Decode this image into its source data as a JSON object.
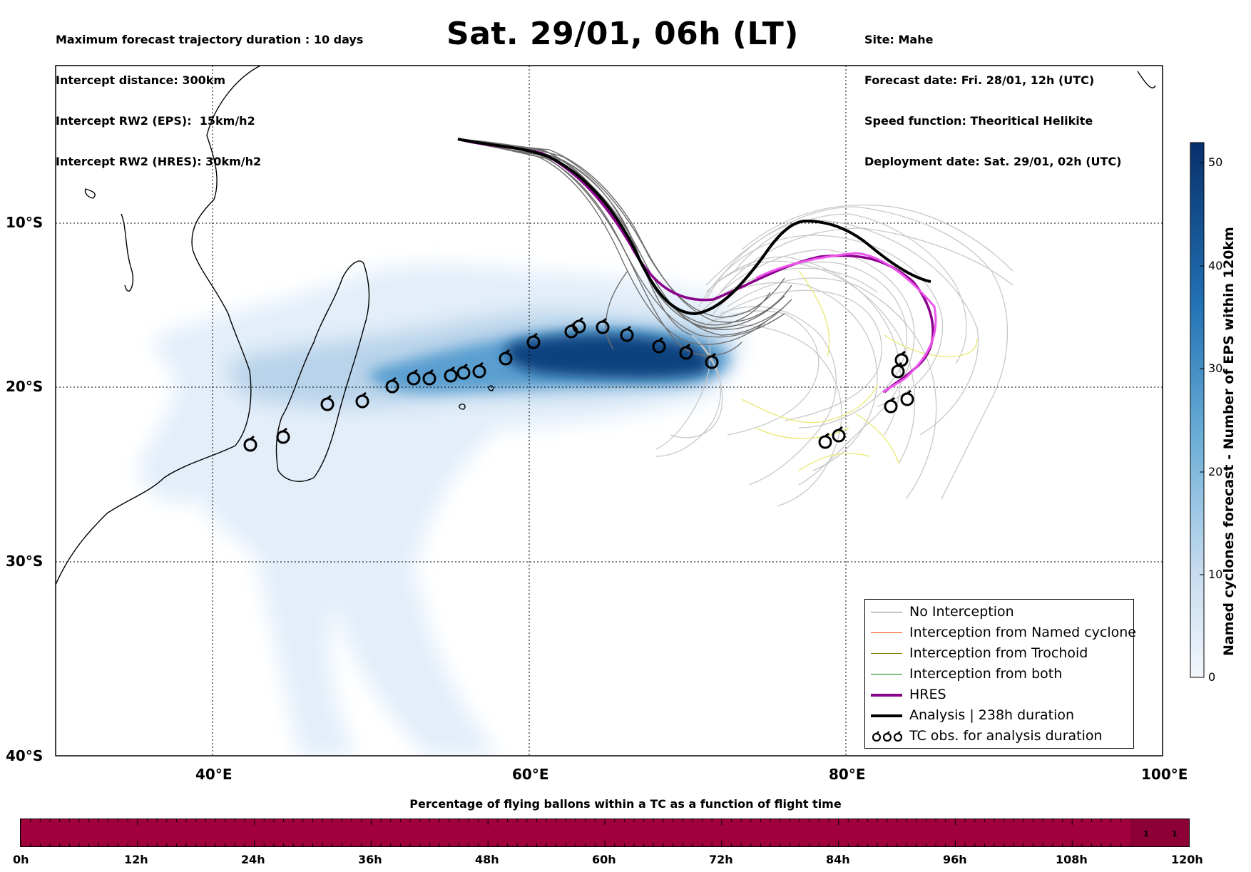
{
  "header_left": [
    "Maximum forecast trajectory duration : 10 days",
    "Intercept distance: 300km",
    "Intercept RW2 (EPS):  15km/h2",
    "Intercept RW2 (HRES): 30km/h2"
  ],
  "header_right": [
    "Site: Mahe",
    "Forecast date: Fri. 28/01, 12h (UTC)",
    "Speed function: Theoritical Helikite",
    "Deployment date: Sat. 29/01, 02h (UTC)"
  ],
  "title": "Sat. 29/01, 06h (LT)",
  "lat_labels": [
    "10°S",
    "20°S",
    "30°S",
    "40°S"
  ],
  "lon_labels": [
    "40°E",
    "60°E",
    "80°E",
    "100°E"
  ],
  "colorbar": {
    "title": "Named cyclones forecast - Number of EPS within 120km",
    "ticks": [
      "0",
      "10",
      "20",
      "30",
      "40",
      "50"
    ],
    "min": 0,
    "max": 52,
    "colors": [
      "#f2f7fc",
      "#08306b"
    ]
  },
  "legend": [
    {
      "label": "No Interception",
      "color": "#808080"
    },
    {
      "label": "Interception from Named cyclone",
      "color": "#ff4500"
    },
    {
      "label": "Interception from Trochoid",
      "color": "#808000"
    },
    {
      "label": "Interception from both",
      "color": "#008000"
    },
    {
      "label": "HRES",
      "color": "#8b008b"
    },
    {
      "label": "Analysis | 238h duration",
      "color": "#000000"
    },
    {
      "label": "TC obs. for analysis duration",
      "icon": "cyclone-symbol-icon"
    }
  ],
  "bottom": {
    "title": "Percentage of flying ballons within a TC as a function of flight time",
    "ticks": [
      "0h",
      "12h",
      "24h",
      "36h",
      "48h",
      "60h",
      "72h",
      "84h",
      "96h",
      "108h",
      "120h"
    ],
    "bar_color": "#a0003c",
    "values_shown": [
      "1",
      "1"
    ]
  },
  "map_features": {
    "site": "Mahe",
    "tc_observation_count": 25,
    "hres_color": "#8b008b",
    "hres_late_color": "#ee55ee",
    "analysis_color": "#000000"
  }
}
